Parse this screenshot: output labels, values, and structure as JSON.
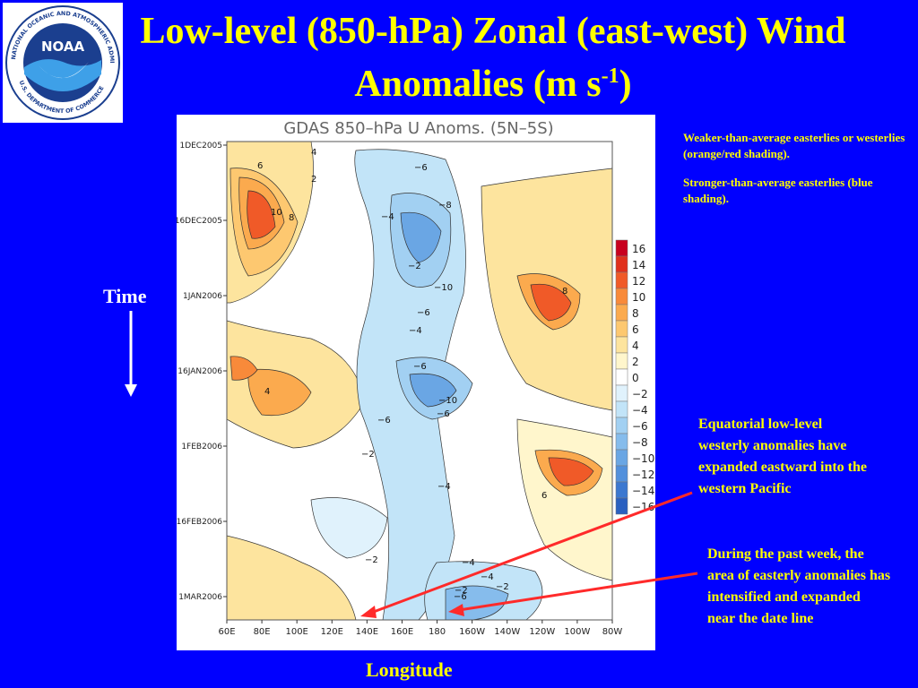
{
  "logo": {
    "center_text": "NOAA",
    "ring_text": "NATIONAL OCEANIC AND ATMOSPHERIC ADMINISTRATION · U.S. DEPARTMENT OF COMMERCE"
  },
  "title": {
    "main": "Low-level (850-hPa) Zonal (east-west) Wind Anomalies (m s",
    "exponent": "-1",
    "close": ")"
  },
  "notes": {
    "weaker": "Weaker-than-average easterlies or westerlies (orange/red shading).",
    "stronger": "Stronger-than-average easterlies (blue shading).",
    "equatorial": "Equatorial low-level westerly anomalies have expanded eastward into the western Pacific",
    "pastweek": "During the past week, the area of easterly anomalies has intensified and expanded near the date line"
  },
  "axis_labels": {
    "time": "Time",
    "longitude": "Longitude"
  },
  "chart_data": {
    "type": "heatmap",
    "title": "GDAS 850–hPa U Anoms. (5N–5S)",
    "x_ticks": [
      "60E",
      "80E",
      "100E",
      "120E",
      "140E",
      "160E",
      "180",
      "160W",
      "140W",
      "120W",
      "100W",
      "80W"
    ],
    "y_ticks": [
      "1DEC2005",
      "16DEC2005",
      "1JAN2006",
      "16JAN2006",
      "1FEB2006",
      "16FEB2006",
      "1MAR2006"
    ],
    "colorbar": {
      "labels": [
        "16",
        "14",
        "12",
        "10",
        "8",
        "6",
        "4",
        "2",
        "0",
        "−2",
        "−4",
        "−6",
        "−8",
        "−10",
        "−12",
        "−14",
        "−16"
      ],
      "colors": [
        "#c8001e",
        "#e0301c",
        "#f05a28",
        "#f88a3a",
        "#fbaa4e",
        "#fdc870",
        "#fde49e",
        "#fff6cc",
        "#ffffff",
        "#e0f2fc",
        "#c2e4f8",
        "#a2d0f2",
        "#86bcec",
        "#6aa6e4",
        "#5290dc",
        "#3c78d0",
        "#2a60c0"
      ]
    },
    "contour_labels": [
      "4",
      "6",
      "2",
      "10",
      "8",
      "−6",
      "−8",
      "−4",
      "−2",
      "−10",
      "8",
      "−6",
      "−4",
      "−6",
      "6",
      "−10",
      "−6",
      "−2",
      "−4",
      "4",
      "−6",
      "−2",
      "−4",
      "−2",
      "−4",
      "−6",
      "−2"
    ]
  },
  "colors": {
    "background": "#0000ff",
    "title": "#ffff00",
    "arrow": "#ff2a2a",
    "body_text": "#ffffff"
  }
}
